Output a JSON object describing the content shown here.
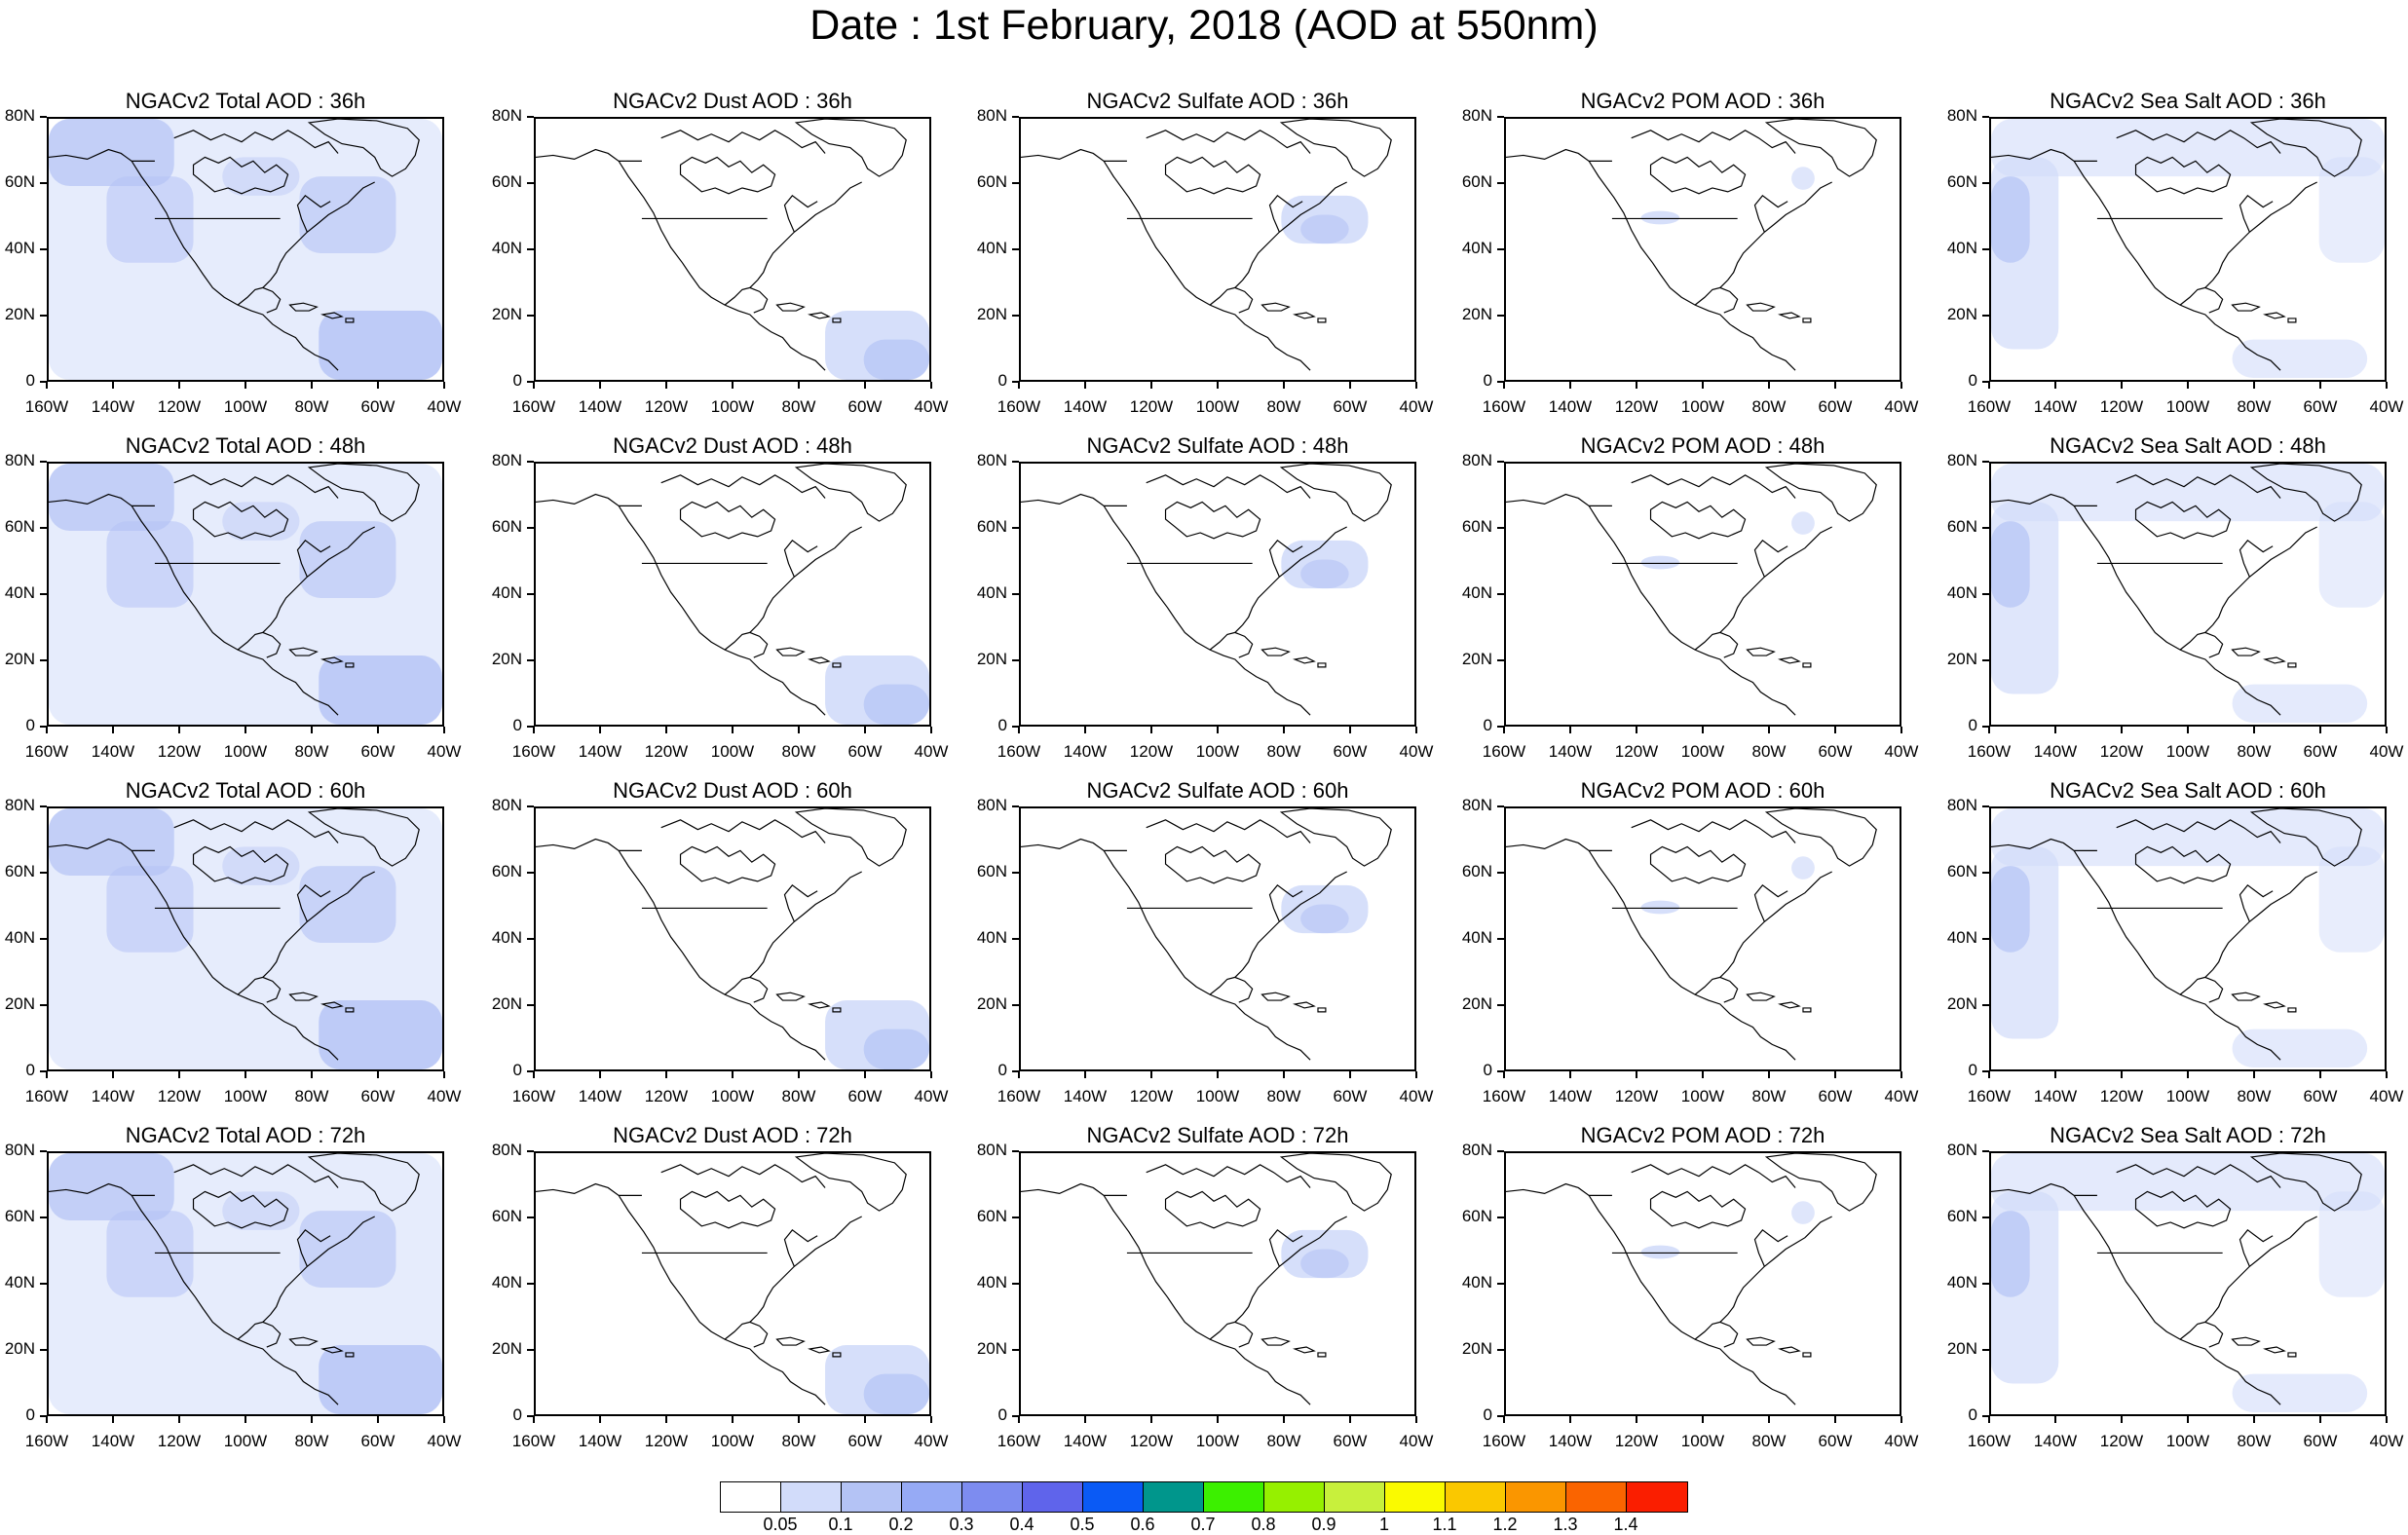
{
  "title": "Date : 1st February, 2018 (AOD at 550nm)",
  "rows": [
    [
      "NGACv2 Total AOD : 36h",
      "NGACv2 Dust AOD : 36h",
      "NGACv2 Sulfate AOD : 36h",
      "NGACv2 POM AOD : 36h",
      "NGACv2 Sea Salt AOD : 36h"
    ],
    [
      "NGACv2 Total AOD : 48h",
      "NGACv2 Dust AOD : 48h",
      "NGACv2 Sulfate AOD : 48h",
      "NGACv2 POM AOD : 48h",
      "NGACv2 Sea Salt AOD : 48h"
    ],
    [
      "NGACv2 Total AOD : 60h",
      "NGACv2 Dust AOD : 60h",
      "NGACv2 Sulfate AOD : 60h",
      "NGACv2 POM AOD : 60h",
      "NGACv2 Sea Salt AOD : 60h"
    ],
    [
      "NGACv2 Total AOD : 72h",
      "NGACv2 Dust AOD : 72h",
      "NGACv2 Sulfate AOD : 72h",
      "NGACv2 POM AOD : 72h",
      "NGACv2 Sea Salt  AOD : 72h"
    ]
  ],
  "panel_kinds": [
    "total",
    "dust",
    "sulfate",
    "pom",
    "seasalt"
  ],
  "lat_ticks": [
    "80N",
    "60N",
    "40N",
    "20N",
    "0"
  ],
  "lon_ticks": [
    "160W",
    "140W",
    "120W",
    "100W",
    "80W",
    "60W",
    "40W"
  ],
  "colorbar": {
    "colors": [
      "#ffffff",
      "#d2dcfa",
      "#b4c3f5",
      "#96aaf5",
      "#7d8cf0",
      "#5f64eb",
      "#0a5af5",
      "#00968c",
      "#3cf000",
      "#96f000",
      "#c8f03c",
      "#fafa00",
      "#fac800",
      "#fa9600",
      "#fa6400",
      "#fa1e00"
    ],
    "labels": [
      "0.05",
      "0.1",
      "0.2",
      "0.3",
      "0.4",
      "0.5",
      "0.6",
      "0.7",
      "0.8",
      "0.9",
      "1",
      "1.1",
      "1.2",
      "1.3",
      "1.4"
    ]
  }
}
